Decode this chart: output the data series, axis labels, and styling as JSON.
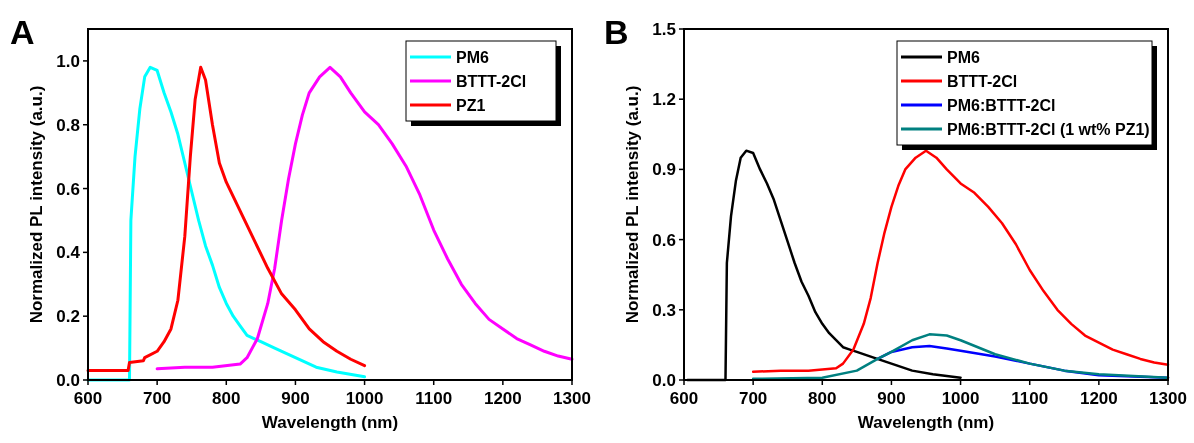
{
  "chart_data": [
    {
      "type": "line",
      "title": "A",
      "xlabel": "Wavelength (nm)",
      "ylabel": "Normalized PL intensity (a.u.)",
      "xlim": [
        600,
        1300
      ],
      "ylim": [
        0,
        1.1
      ],
      "xticks": [
        600,
        700,
        800,
        900,
        1000,
        1100,
        1200,
        1300
      ],
      "yticks": [
        {
          "value": 0,
          "label": "0.0"
        },
        {
          "value": 0.2,
          "label": "0.2"
        },
        {
          "value": 0.4,
          "label": "0.4"
        },
        {
          "value": 0.6,
          "label": "0.6"
        },
        {
          "value": 0.8,
          "label": "0.8"
        },
        {
          "value": 1,
          "label": "1.0"
        }
      ],
      "legend": "top right",
      "grid": false,
      "series": [
        {
          "name": "PM6",
          "color": "#00ffff",
          "x": [
            600,
            655,
            660,
            662,
            668,
            675,
            682,
            690,
            700,
            710,
            720,
            730,
            740,
            750,
            760,
            770,
            780,
            790,
            800,
            810,
            820,
            830,
            840,
            850,
            870,
            900,
            930,
            960,
            1000
          ],
          "values": [
            0,
            0,
            0,
            0.5,
            0.7,
            0.85,
            0.95,
            0.98,
            0.97,
            0.9,
            0.84,
            0.77,
            0.68,
            0.59,
            0.5,
            0.42,
            0.36,
            0.29,
            0.24,
            0.2,
            0.17,
            0.14,
            0.13,
            0.12,
            0.1,
            0.07,
            0.04,
            0.025,
            0.01
          ]
        },
        {
          "name": "BTTT-2Cl",
          "color": "#ff00ff",
          "x": [
            700,
            740,
            780,
            820,
            830,
            845,
            860,
            870,
            880,
            890,
            900,
            910,
            920,
            935,
            950,
            965,
            980,
            1000,
            1020,
            1040,
            1060,
            1080,
            1100,
            1120,
            1140,
            1160,
            1180,
            1200,
            1220,
            1240,
            1260,
            1280,
            1300
          ],
          "values": [
            0.035,
            0.04,
            0.04,
            0.05,
            0.07,
            0.13,
            0.24,
            0.35,
            0.5,
            0.63,
            0.74,
            0.83,
            0.9,
            0.95,
            0.98,
            0.95,
            0.9,
            0.84,
            0.8,
            0.74,
            0.67,
            0.58,
            0.47,
            0.38,
            0.3,
            0.24,
            0.19,
            0.16,
            0.13,
            0.11,
            0.09,
            0.075,
            0.065
          ]
        },
        {
          "name": "PZ1",
          "color": "#ff0000",
          "x": [
            600,
            658,
            660,
            680,
            682,
            700,
            710,
            720,
            730,
            740,
            748,
            755,
            763,
            770,
            780,
            790,
            800,
            820,
            840,
            860,
            880,
            900,
            920,
            940,
            960,
            980,
            1000
          ],
          "values": [
            0.03,
            0.03,
            0.055,
            0.06,
            0.07,
            0.09,
            0.12,
            0.16,
            0.25,
            0.45,
            0.7,
            0.88,
            0.98,
            0.94,
            0.8,
            0.68,
            0.62,
            0.53,
            0.44,
            0.35,
            0.27,
            0.22,
            0.16,
            0.12,
            0.09,
            0.065,
            0.045
          ]
        }
      ]
    },
    {
      "type": "line",
      "title": "B",
      "xlabel": "Wavelength (nm)",
      "ylabel": "Normalized PL intensity (a.u.)",
      "xlim": [
        600,
        1300
      ],
      "ylim": [
        0,
        1.5
      ],
      "xticks": [
        600,
        700,
        800,
        900,
        1000,
        1100,
        1200,
        1300
      ],
      "yticks": [
        {
          "value": 0,
          "label": "0.0"
        },
        {
          "value": 0.3,
          "label": "0.3"
        },
        {
          "value": 0.6,
          "label": "0.6"
        },
        {
          "value": 0.9,
          "label": "0.9"
        },
        {
          "value": 1.2,
          "label": "1.2"
        },
        {
          "value": 1.5,
          "label": "1.5"
        }
      ],
      "legend": "top right",
      "grid": false,
      "series": [
        {
          "name": "PM6",
          "color": "#000000",
          "x": [
            605,
            655,
            660,
            662,
            668,
            675,
            682,
            690,
            700,
            710,
            720,
            730,
            740,
            750,
            760,
            770,
            780,
            790,
            800,
            810,
            820,
            830,
            840,
            850,
            870,
            900,
            930,
            960,
            1000
          ],
          "values": [
            0,
            0,
            0,
            0.5,
            0.7,
            0.85,
            0.95,
            0.98,
            0.97,
            0.9,
            0.84,
            0.77,
            0.68,
            0.59,
            0.5,
            0.42,
            0.36,
            0.29,
            0.24,
            0.2,
            0.17,
            0.14,
            0.13,
            0.12,
            0.1,
            0.07,
            0.04,
            0.025,
            0.01
          ]
        },
        {
          "name": "BTTT-2Cl",
          "color": "#ff0000",
          "x": [
            700,
            740,
            780,
            820,
            830,
            845,
            860,
            870,
            880,
            890,
            900,
            910,
            920,
            935,
            950,
            965,
            980,
            1000,
            1020,
            1040,
            1060,
            1080,
            1100,
            1120,
            1140,
            1160,
            1180,
            1200,
            1220,
            1240,
            1260,
            1280,
            1300
          ],
          "values": [
            0.035,
            0.04,
            0.04,
            0.05,
            0.07,
            0.13,
            0.24,
            0.35,
            0.5,
            0.63,
            0.74,
            0.83,
            0.9,
            0.95,
            0.98,
            0.95,
            0.9,
            0.84,
            0.8,
            0.74,
            0.67,
            0.58,
            0.47,
            0.38,
            0.3,
            0.24,
            0.19,
            0.16,
            0.13,
            0.11,
            0.09,
            0.075,
            0.065
          ]
        },
        {
          "name": "PM6:BTTT-2Cl",
          "color": "#0000ff",
          "x": [
            880,
            900,
            930,
            955,
            980,
            1000,
            1050,
            1100,
            1150,
            1200,
            1300
          ],
          "values": [
            0.09,
            0.12,
            0.14,
            0.145,
            0.135,
            0.125,
            0.1,
            0.07,
            0.04,
            0.02,
            0.01
          ]
        },
        {
          "name": "PM6:BTTT-2Cl (1 wt% PZ1)",
          "color": "#008080",
          "x": [
            700,
            800,
            850,
            880,
            900,
            930,
            955,
            980,
            1000,
            1050,
            1100,
            1150,
            1200,
            1300
          ],
          "values": [
            0.005,
            0.01,
            0.04,
            0.09,
            0.12,
            0.17,
            0.195,
            0.19,
            0.17,
            0.11,
            0.07,
            0.04,
            0.025,
            0.01
          ]
        }
      ]
    }
  ]
}
